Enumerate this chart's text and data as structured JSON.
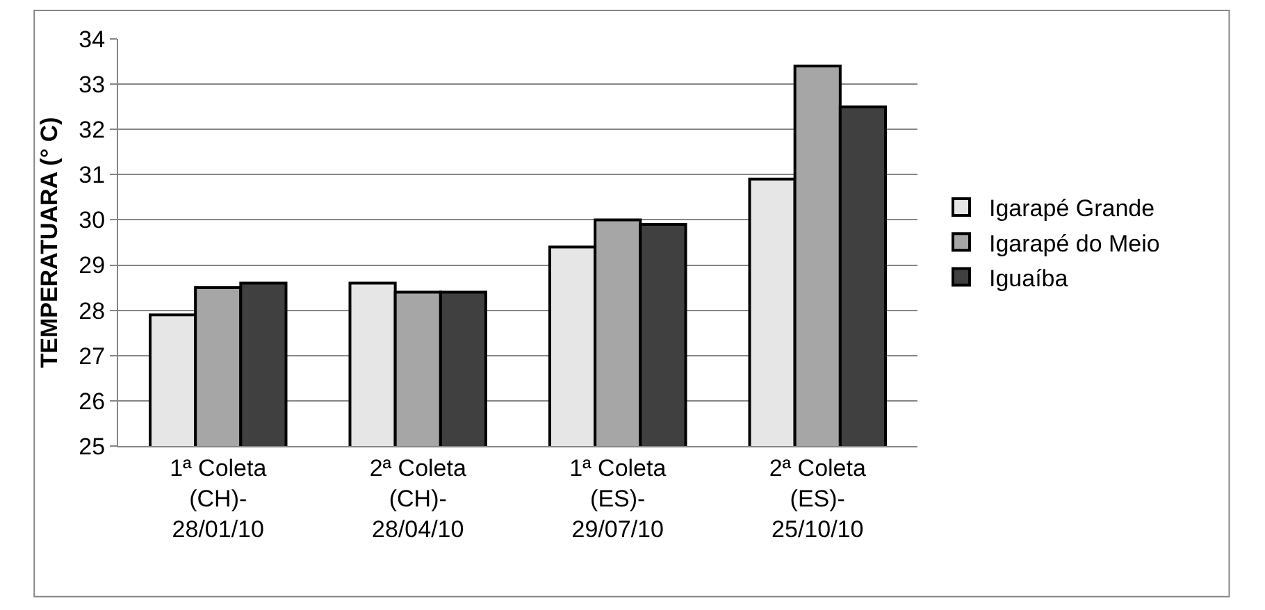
{
  "chart_data": {
    "type": "bar",
    "ylabel": "TEMPERATUARA (° C)",
    "categories": [
      "1ª Coleta\n(CH)-\n28/01/10",
      "2ª Coleta\n(CH)-\n28/04/10",
      "1ª Coleta\n(ES)-\n29/07/10",
      "2ª Coleta\n(ES)-\n25/10/10"
    ],
    "series": [
      {
        "name": "Igarapé Grande",
        "color": "#e6e6e6",
        "values": [
          27.9,
          28.6,
          29.4,
          30.9
        ]
      },
      {
        "name": "Igarapé do Meio",
        "color": "#a6a6a6",
        "values": [
          28.5,
          28.4,
          30.0,
          33.4
        ]
      },
      {
        "name": "Iguaíba",
        "color": "#404040",
        "values": [
          28.6,
          28.4,
          29.9,
          32.5
        ]
      }
    ],
    "ylim": [
      25,
      34
    ],
    "yticks": [
      25,
      26,
      27,
      28,
      29,
      30,
      31,
      32,
      33,
      34
    ],
    "grid": "y",
    "legend": "right"
  }
}
